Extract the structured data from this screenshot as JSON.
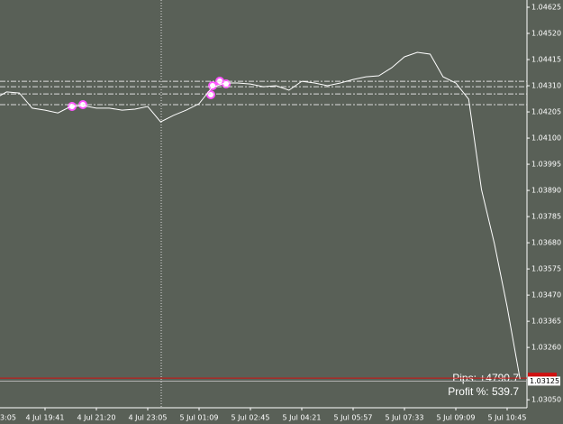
{
  "chart_data": {
    "type": "line",
    "categories": [
      "3:05",
      null,
      null,
      null,
      "4 Jul 19:41",
      null,
      null,
      null,
      "4 Jul 21:20",
      null,
      null,
      null,
      "4 Jul 23:05",
      null,
      null,
      null,
      "5 Jul 01:09",
      null,
      null,
      null,
      "5 Jul 02:45",
      null,
      null,
      null,
      "5 Jul 04:21",
      null,
      null,
      null,
      "5 Jul 05:57",
      null,
      null,
      null,
      "5 Jul 07:33",
      null,
      null,
      null,
      "5 Jul 09:09",
      null,
      null,
      null,
      "5 Jul 10:45",
      null
    ],
    "values": [
      1.04256,
      1.04285,
      1.04281,
      1.0422,
      1.04212,
      1.04201,
      1.04227,
      1.0423,
      1.0422,
      1.0422,
      1.04212,
      1.04216,
      1.04227,
      1.04165,
      1.04191,
      1.04212,
      1.04238,
      1.04303,
      1.04321,
      1.04321,
      1.04317,
      1.04306,
      1.0431,
      1.04292,
      1.04328,
      1.04321,
      1.0431,
      1.04321,
      1.04335,
      1.04346,
      1.0435,
      1.04382,
      1.04426,
      1.04444,
      1.04437,
      1.04346,
      1.04321,
      1.04256,
      1.03894,
      1.03677,
      1.03423,
      1.03133
    ],
    "color": "#ffffff",
    "ylim": [
      1.03018,
      1.04654
    ],
    "yticks": [
      1.04625,
      {
        "value": 1.0452,
        "label": "1.04520"
      },
      1.04415,
      {
        "value": 1.0431,
        "label": "1.04310"
      },
      1.04205,
      {
        "value": 1.041,
        "label": "1.04100"
      },
      1.03995,
      {
        "value": 1.0389,
        "label": "1.03890"
      },
      1.03785,
      {
        "value": 1.0368,
        "label": "1.03680"
      },
      1.03575,
      {
        "value": 1.0347,
        "label": "1.03470"
      },
      1.03365,
      {
        "value": 1.0326,
        "label": "1.03260"
      },
      {
        "value": 1.0305,
        "label": "1.03050"
      }
    ],
    "levels": [
      1.04328,
      1.04306,
      1.04277,
      1.04234
    ],
    "red_level": 1.03137,
    "price": 1.03125,
    "pips": "Pips: +4790.7",
    "profit": "Profit %: 539.7"
  }
}
